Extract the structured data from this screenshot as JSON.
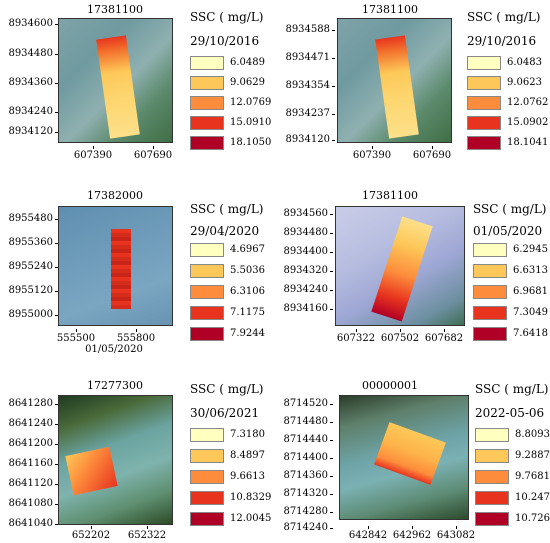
{
  "legend_title": "SSC ( mg/L)",
  "legend_colors": [
    "#ffffbf",
    "#fdc859",
    "#fd8d3c",
    "#e8341f",
    "#b10026"
  ],
  "panels": [
    {
      "station": "17381100",
      "date": "29/10/2016",
      "y_ticks": [
        "8934600",
        "8934480",
        "8934360",
        "8934240",
        "8934120"
      ],
      "x_ticks": [
        "607390",
        "607690"
      ],
      "legend": [
        "6.0489",
        "9.0629",
        "12.0769",
        "15.0910",
        "18.1050"
      ]
    },
    {
      "station": "17381100",
      "date": "29/10/2016",
      "y_ticks": [
        "8934588",
        "8934471",
        "8934354",
        "8934237",
        "8934120"
      ],
      "x_ticks": [
        "607390",
        "607690"
      ],
      "legend": [
        "6.0483",
        "9.0623",
        "12.0762",
        "15.0902",
        "18.1041"
      ]
    },
    {
      "station": "17382000",
      "date": "29/04/2020",
      "subtitle": "01/05/2020",
      "y_ticks": [
        "8955480",
        "8955360",
        "8955240",
        "8955120",
        "8955000"
      ],
      "x_ticks": [
        "555500",
        "555800"
      ],
      "legend": [
        "4.6967",
        "5.5036",
        "6.3106",
        "7.1175",
        "7.9244"
      ]
    },
    {
      "station": "17381100",
      "date": "01/05/2020",
      "y_ticks": [
        "8934560",
        "8934480",
        "8934400",
        "8934320",
        "8934240",
        "8934160"
      ],
      "x_ticks": [
        "607322",
        "607502",
        "607682"
      ],
      "legend": [
        "6.2945",
        "6.6313",
        "6.9681",
        "7.3049",
        "7.6418"
      ]
    },
    {
      "station": "17277300",
      "date": "30/06/2021",
      "y_ticks": [
        "8641280",
        "8641240",
        "8641200",
        "8641160",
        "8641120",
        "8641080",
        "8641040"
      ],
      "x_ticks": [
        "652202",
        "652322"
      ],
      "legend": [
        "7.3180",
        "8.4897",
        "9.6613",
        "10.8329",
        "12.0045"
      ]
    },
    {
      "station": "00000001",
      "date": "2022-05-06",
      "y_ticks": [
        "8714520",
        "8714480",
        "8714440",
        "8714400",
        "8714360",
        "8714320",
        "8714280",
        "8714240"
      ],
      "x_ticks": [
        "642842",
        "642962",
        "643082"
      ],
      "legend": [
        "8.8093",
        "9.2887",
        "9.7681",
        "10.2475",
        "10.7269"
      ]
    }
  ]
}
